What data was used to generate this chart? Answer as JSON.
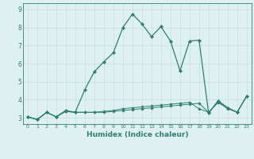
{
  "xlabel": "Humidex (Indice chaleur)",
  "x": [
    0,
    1,
    2,
    3,
    4,
    5,
    6,
    7,
    8,
    9,
    10,
    11,
    12,
    13,
    14,
    15,
    16,
    17,
    18,
    19,
    20,
    21,
    22,
    23
  ],
  "line1": [
    3.05,
    2.9,
    3.3,
    3.05,
    3.4,
    3.3,
    4.55,
    5.55,
    6.1,
    6.6,
    8.0,
    8.75,
    8.2,
    7.5,
    8.05,
    7.25,
    5.6,
    7.25,
    7.3,
    3.25,
    3.95,
    3.55,
    3.3,
    4.2
  ],
  "line2": [
    3.05,
    2.9,
    3.3,
    3.05,
    3.35,
    3.3,
    3.3,
    3.3,
    3.3,
    3.35,
    3.4,
    3.45,
    3.5,
    3.55,
    3.6,
    3.65,
    3.7,
    3.75,
    3.8,
    3.3,
    3.85,
    3.5,
    3.3,
    4.2
  ],
  "line3": [
    3.05,
    2.9,
    3.3,
    3.05,
    3.35,
    3.3,
    3.3,
    3.3,
    3.35,
    3.4,
    3.5,
    3.55,
    3.6,
    3.65,
    3.7,
    3.75,
    3.8,
    3.85,
    3.5,
    3.3,
    3.85,
    3.55,
    3.3,
    4.2
  ],
  "line_color": "#2d7f72",
  "bg_color": "#dff0f0",
  "grid_color_h": "#c8dede",
  "grid_color_v": "#c8dede",
  "ylim": [
    2.65,
    9.35
  ],
  "xlim": [
    -0.5,
    23.5
  ],
  "yticks": [
    3,
    4,
    5,
    6,
    7,
    8,
    9
  ]
}
